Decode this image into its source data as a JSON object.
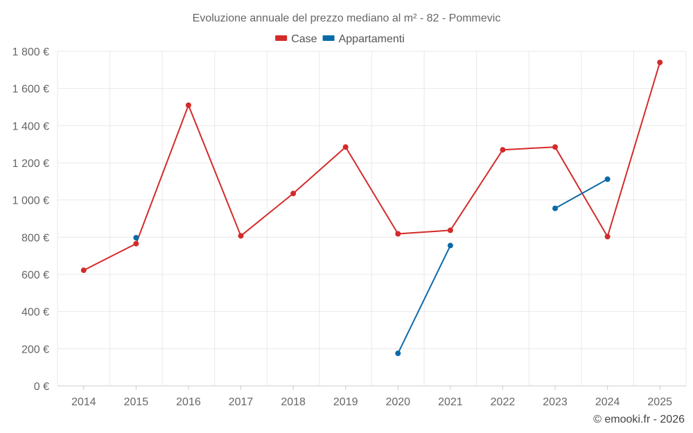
{
  "chart_data": {
    "type": "line",
    "title": "Evoluzione annuale del prezzo mediano al m² - 82 - Pommevic",
    "categories": [
      "2014",
      "2015",
      "2016",
      "2017",
      "2018",
      "2019",
      "2020",
      "2021",
      "2022",
      "2023",
      "2024",
      "2025"
    ],
    "series": [
      {
        "name": "Case",
        "color": "#d42a2a",
        "values": [
          622,
          765,
          1510,
          807,
          1035,
          1285,
          818,
          837,
          1270,
          1285,
          803,
          1740
        ]
      },
      {
        "name": "Appartamenti",
        "color": "#0a6aa8",
        "values": [
          null,
          797,
          null,
          null,
          null,
          null,
          175,
          755,
          null,
          955,
          1112,
          null
        ]
      }
    ],
    "ylim": [
      0,
      1800
    ],
    "yticks": [
      0,
      200,
      400,
      600,
      800,
      1000,
      1200,
      1400,
      1600,
      1800
    ],
    "ytick_labels": [
      "0 €",
      "200 €",
      "400 €",
      "600 €",
      "800 €",
      "1 000 €",
      "1 200 €",
      "1 400 €",
      "1 600 €",
      "1 800 €"
    ],
    "xlabel": "",
    "ylabel": "",
    "grid": true,
    "legend_position": "top-center"
  },
  "credit": "© emooki.fr - 2026"
}
